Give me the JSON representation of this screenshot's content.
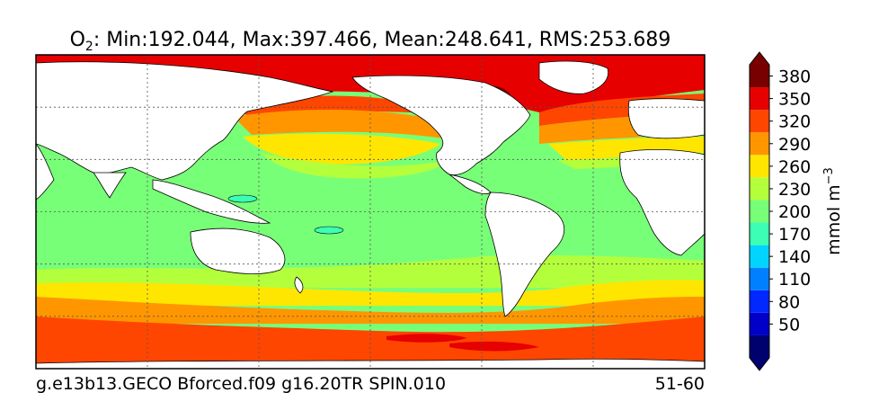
{
  "chart_data": {
    "type": "heatmap",
    "title": {
      "variable": "O",
      "subscript": "2",
      "stats": ": Min:192.044, Max:397.466, Mean:248.641, RMS:253.689"
    },
    "stats": {
      "min": 192.044,
      "max": 397.466,
      "mean": 248.641,
      "rms": 253.689
    },
    "colorbar": {
      "label": "mmol m",
      "label_exponent": "−3",
      "ticks": [
        "380",
        "350",
        "320",
        "290",
        "260",
        "230",
        "200",
        "170",
        "140",
        "110",
        "80",
        "50"
      ],
      "levels": [
        50,
        80,
        110,
        140,
        170,
        200,
        230,
        260,
        290,
        320,
        350,
        380
      ],
      "colors": [
        "#00006e",
        "#0000c8",
        "#0028ff",
        "#0080ff",
        "#00d4ff",
        "#3cffb4",
        "#78ff78",
        "#b4ff3c",
        "#ffe600",
        "#ff9600",
        "#ff4600",
        "#e60000",
        "#780000"
      ],
      "extend": "both"
    },
    "footer": {
      "left": "g.e13b13.GECO Bforced.f09 g16.20TR SPIN.010",
      "right": "51-60"
    },
    "map": {
      "projection": "cylindrical",
      "gridlines": true,
      "land_color": "#ffffff",
      "coastline_color": "#000000"
    }
  }
}
